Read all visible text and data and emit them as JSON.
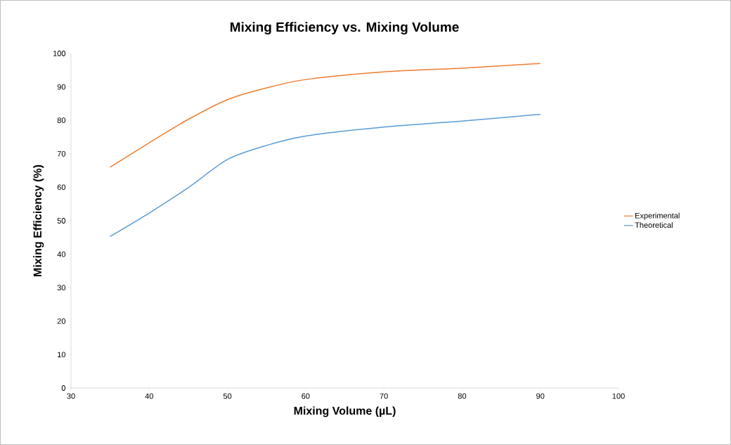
{
  "chart_data": {
    "type": "line",
    "title": "Mixing Efficiency vs. Mixing Volume",
    "xlabel": "Mixing Volume (µL)",
    "ylabel": "Mixing Efficiency (%)",
    "x": [
      35,
      40,
      45,
      50,
      55,
      60,
      70,
      80,
      90
    ],
    "series": [
      {
        "name": "Experimental",
        "color": "#ed7d31",
        "values": [
          66,
          73.3,
          80.3,
          86.2,
          89.7,
          92.2,
          94.5,
          95.6,
          97
        ]
      },
      {
        "name": "Theoretical",
        "color": "#5b9bd5",
        "values": [
          45.3,
          52.3,
          59.9,
          68.3,
          72.5,
          75.3,
          78,
          79.8,
          81.8
        ]
      }
    ],
    "xlim": [
      30,
      100
    ],
    "xticks": [
      30,
      40,
      50,
      60,
      70,
      80,
      90,
      100
    ],
    "ylim": [
      0,
      100
    ],
    "yticks": [
      0,
      10,
      20,
      30,
      40,
      50,
      60,
      70,
      80,
      90,
      100
    ],
    "grid": false,
    "legend": "right",
    "marker": "none",
    "line_style": "solid"
  }
}
